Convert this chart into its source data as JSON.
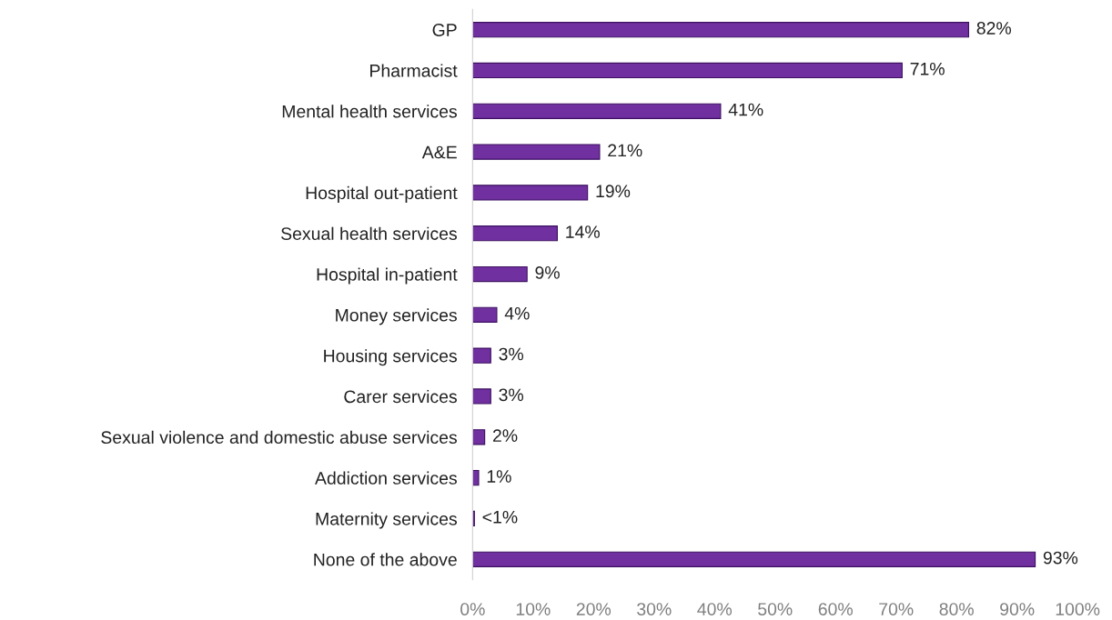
{
  "chart_data": {
    "type": "bar",
    "orientation": "horizontal",
    "categories": [
      "GP",
      "Pharmacist",
      "Mental health services",
      "A&E",
      "Hospital out-patient",
      "Sexual health services",
      "Hospital in-patient",
      "Money services",
      "Housing services",
      "Carer services",
      "Sexual violence and domestic abuse services",
      "Addiction services",
      "Maternity services",
      "None of the above"
    ],
    "values": [
      82,
      71,
      41,
      21,
      19,
      14,
      9,
      4,
      3,
      3,
      2,
      1,
      0.3,
      93
    ],
    "value_labels": [
      "82%",
      "71%",
      "41%",
      "21%",
      "19%",
      "14%",
      "9%",
      "4%",
      "3%",
      "3%",
      "2%",
      "1%",
      "<1%",
      "93%"
    ],
    "color": "#7030a0",
    "xlim": [
      0,
      100
    ],
    "xticks": [
      {
        "value": 0,
        "label": "0%"
      },
      {
        "value": 10,
        "label": "10%"
      },
      {
        "value": 20,
        "label": "20%"
      },
      {
        "value": 30,
        "label": "30%"
      },
      {
        "value": 40,
        "label": "40%"
      },
      {
        "value": 50,
        "label": "50%"
      },
      {
        "value": 60,
        "label": "60%"
      },
      {
        "value": 70,
        "label": "70%"
      },
      {
        "value": 80,
        "label": "80%"
      },
      {
        "value": 90,
        "label": "90%"
      },
      {
        "value": 100,
        "label": "100%"
      }
    ],
    "grid": false,
    "legend": false
  }
}
